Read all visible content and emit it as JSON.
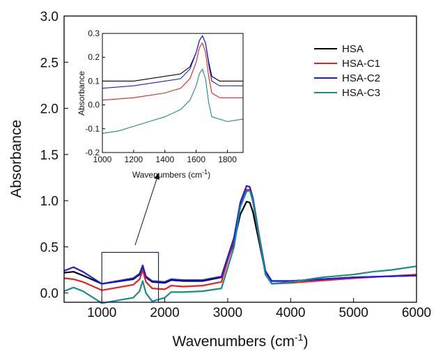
{
  "chart_data": [
    {
      "type": "line",
      "xlabel": "Wavenumbers (cm",
      "xlabel_sup": "-1",
      "xlabel_close": ")",
      "ylabel": "Absorbance",
      "xlim": [
        400,
        6000
      ],
      "ylim": [
        -0.1,
        3.0
      ],
      "x_ticks": [
        1000,
        2000,
        3000,
        4000,
        5000,
        6000
      ],
      "y_ticks": [
        0.0,
        0.5,
        1.0,
        1.5,
        2.0,
        2.5,
        3.0
      ],
      "x_tick_labels": [
        "1000",
        "2000",
        "3000",
        "4000",
        "5000",
        "6000"
      ],
      "y_tick_labels": [
        "0.0",
        "0.5",
        "1.0",
        "1.5",
        "2.0",
        "2.5",
        "3.0"
      ],
      "legend_position": "top-right",
      "zoom_box": {
        "x": [
          1000,
          1900
        ],
        "y": [
          -0.1,
          0.44
        ]
      },
      "series": [
        {
          "name": "HSA",
          "color": "#000000",
          "x": [
            400,
            550,
            700,
            1000,
            1500,
            1600,
            1650,
            1700,
            1800,
            2000,
            2100,
            2300,
            2600,
            2900,
            3100,
            3200,
            3300,
            3350,
            3400,
            3500,
            3600,
            3700,
            4000,
            5000,
            6000
          ],
          "y": [
            0.22,
            0.23,
            0.19,
            0.1,
            0.15,
            0.2,
            0.29,
            0.17,
            0.12,
            0.11,
            0.14,
            0.13,
            0.13,
            0.17,
            0.55,
            0.85,
            0.99,
            0.98,
            0.88,
            0.55,
            0.22,
            0.13,
            0.13,
            0.17,
            0.19
          ]
        },
        {
          "name": "HSA-C1",
          "color": "#e8211c",
          "x": [
            400,
            550,
            700,
            1000,
            1500,
            1600,
            1650,
            1700,
            1800,
            2000,
            2100,
            2300,
            2600,
            2900,
            3100,
            3200,
            3300,
            3350,
            3400,
            3500,
            3600,
            3700,
            4000,
            5000,
            6000
          ],
          "y": [
            0.16,
            0.15,
            0.12,
            0.03,
            0.09,
            0.15,
            0.25,
            0.12,
            0.05,
            0.04,
            0.08,
            0.07,
            0.08,
            0.12,
            0.58,
            0.95,
            1.12,
            1.12,
            0.99,
            0.6,
            0.22,
            0.1,
            0.11,
            0.16,
            0.2
          ]
        },
        {
          "name": "HSA-C2",
          "color": "#1c1cf0",
          "x": [
            400,
            550,
            700,
            1000,
            1500,
            1600,
            1650,
            1700,
            1800,
            2000,
            2100,
            2300,
            2600,
            2900,
            3100,
            3200,
            3300,
            3350,
            3400,
            3500,
            3600,
            3700,
            4000,
            5000,
            6000
          ],
          "y": [
            0.24,
            0.28,
            0.23,
            0.1,
            0.16,
            0.21,
            0.3,
            0.18,
            0.13,
            0.12,
            0.15,
            0.14,
            0.14,
            0.18,
            0.6,
            0.98,
            1.16,
            1.15,
            1.03,
            0.62,
            0.24,
            0.13,
            0.13,
            0.17,
            0.19
          ]
        },
        {
          "name": "HSA-C3",
          "color": "#1a8a8a",
          "x": [
            400,
            550,
            700,
            1000,
            1500,
            1600,
            1650,
            1700,
            1800,
            2000,
            2100,
            2300,
            2600,
            2900,
            3100,
            3200,
            3300,
            3350,
            3400,
            3500,
            3600,
            3700,
            4000,
            4500,
            5000,
            5300,
            5600,
            6000
          ],
          "y": [
            0.02,
            0.06,
            0.02,
            -0.11,
            -0.05,
            0.02,
            0.13,
            0.0,
            -0.09,
            -0.05,
            0.01,
            0.01,
            0.02,
            0.05,
            0.5,
            0.93,
            1.1,
            1.11,
            1.0,
            0.6,
            0.2,
            0.1,
            0.12,
            0.17,
            0.2,
            0.23,
            0.25,
            0.29
          ]
        }
      ]
    },
    {
      "type": "line",
      "xlabel": "Wavenumbers (cm",
      "xlabel_sup": "-1",
      "xlabel_close": ")",
      "ylabel": "Absorbance",
      "xlim": [
        1000,
        1900
      ],
      "ylim": [
        -0.2,
        0.3
      ],
      "x_ticks": [
        1000,
        1200,
        1400,
        1600,
        1800
      ],
      "y_ticks": [
        -0.2,
        -0.1,
        0.0,
        0.1,
        0.2,
        0.3
      ],
      "x_tick_labels": [
        "1000",
        "1200",
        "1400",
        "1600",
        "1800"
      ],
      "y_tick_labels": [
        "-0.2",
        "-0.1",
        "0.0",
        "0.1",
        "0.2",
        "0.3"
      ],
      "series": [
        {
          "name": "HSA",
          "color": "#000000",
          "x": [
            1000,
            1200,
            1400,
            1500,
            1560,
            1600,
            1620,
            1640,
            1660,
            1680,
            1700,
            1750,
            1800,
            1900
          ],
          "y": [
            0.1,
            0.1,
            0.12,
            0.13,
            0.16,
            0.22,
            0.27,
            0.29,
            0.26,
            0.18,
            0.12,
            0.1,
            0.1,
            0.1
          ]
        },
        {
          "name": "HSA-C1",
          "color": "#e8211c",
          "x": [
            1000,
            1200,
            1400,
            1500,
            1560,
            1600,
            1620,
            1640,
            1660,
            1680,
            1700,
            1750,
            1800,
            1900
          ],
          "y": [
            0.02,
            0.03,
            0.05,
            0.07,
            0.11,
            0.18,
            0.24,
            0.26,
            0.22,
            0.12,
            0.05,
            0.03,
            0.03,
            0.03
          ]
        },
        {
          "name": "HSA-C2",
          "color": "#1c1cf0",
          "x": [
            1000,
            1200,
            1400,
            1500,
            1560,
            1600,
            1620,
            1640,
            1660,
            1680,
            1700,
            1750,
            1800,
            1900
          ],
          "y": [
            0.07,
            0.08,
            0.1,
            0.11,
            0.15,
            0.22,
            0.27,
            0.29,
            0.26,
            0.17,
            0.1,
            0.08,
            0.08,
            0.08
          ]
        },
        {
          "name": "HSA-C3",
          "color": "#1a8a8a",
          "x": [
            1000,
            1100,
            1200,
            1300,
            1400,
            1500,
            1560,
            1600,
            1620,
            1640,
            1660,
            1680,
            1700,
            1750,
            1800,
            1900
          ],
          "y": [
            -0.12,
            -0.11,
            -0.09,
            -0.07,
            -0.05,
            -0.02,
            0.02,
            0.08,
            0.13,
            0.15,
            0.11,
            0.01,
            -0.05,
            -0.06,
            -0.07,
            -0.06
          ]
        }
      ]
    }
  ]
}
